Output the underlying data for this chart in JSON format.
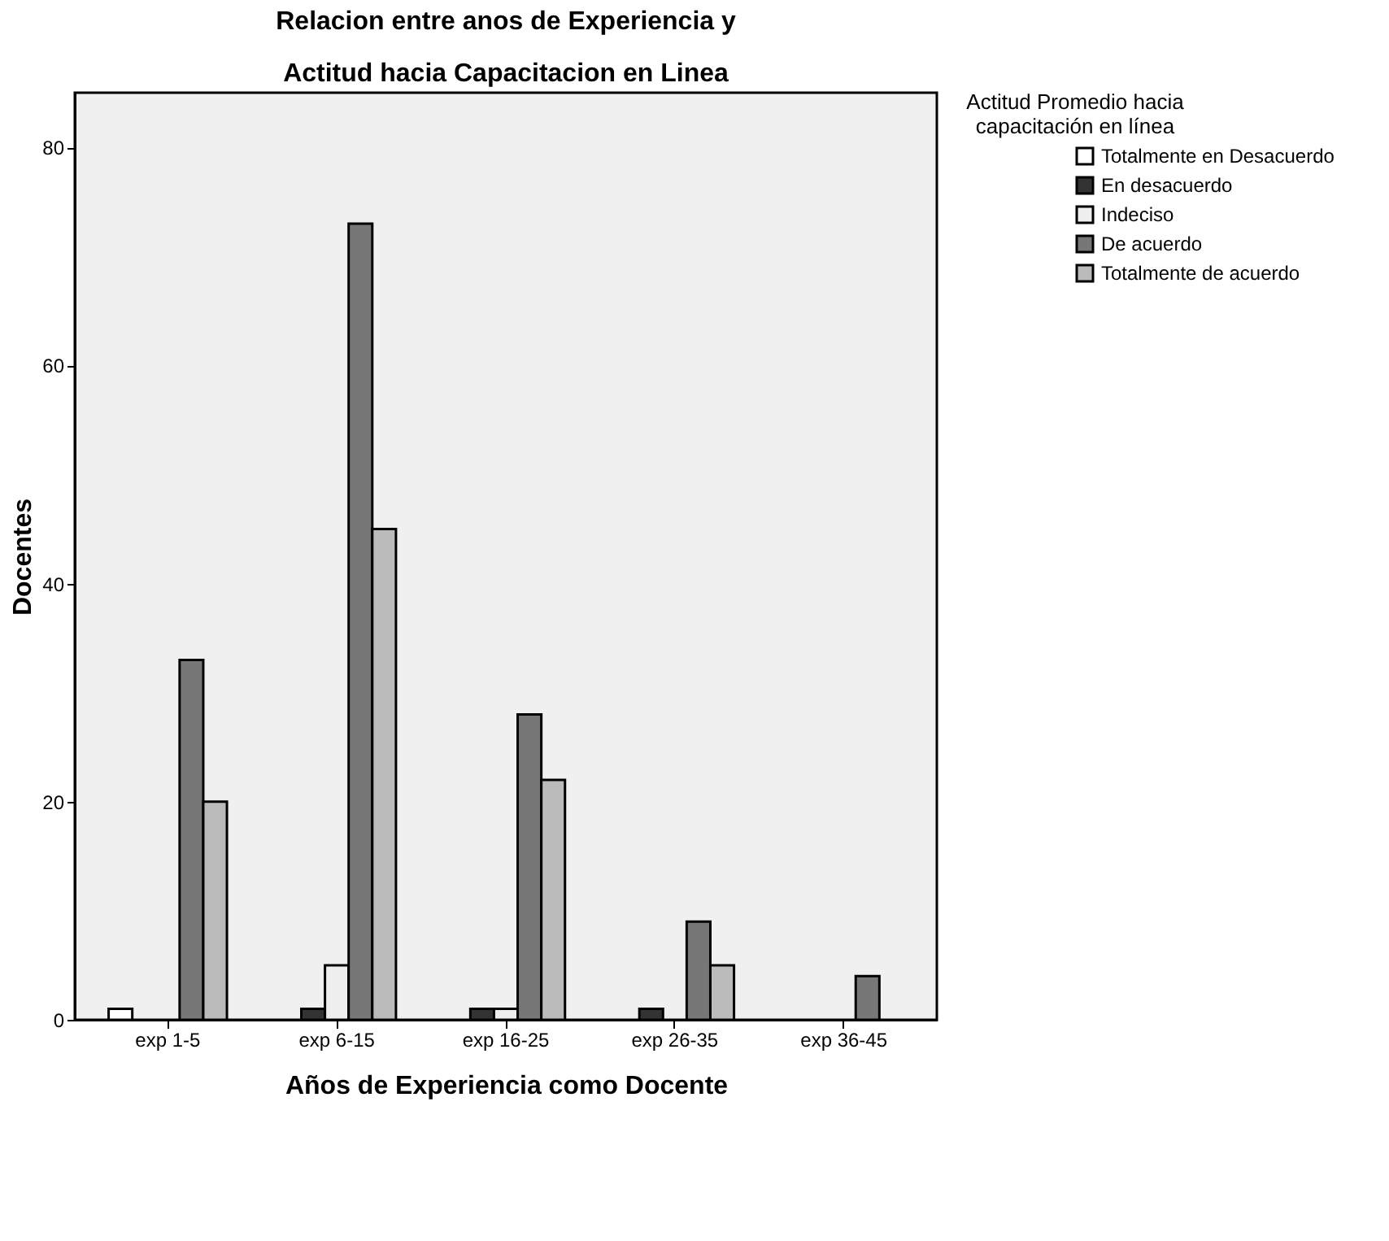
{
  "chart_data": {
    "type": "bar",
    "title": "Relacion entre anos de Experiencia y Actitud hacia Capacitacion en Linea",
    "xlabel": "Años de Experiencia como Docente",
    "ylabel": "Docentes",
    "legend_title": "Actitud Promedio hacia capacitación en línea",
    "categories": [
      "exp 1-5",
      "exp 6-15",
      "exp 16-25",
      "exp 26-35",
      "exp 36-45"
    ],
    "series": [
      {
        "name": "Totalmente en Desacuerdo",
        "color": "#ffffff",
        "values": [
          1,
          0,
          0,
          0,
          0
        ]
      },
      {
        "name": "En desacuerdo",
        "color": "#333333",
        "values": [
          0,
          1,
          1,
          1,
          0
        ]
      },
      {
        "name": "Indeciso",
        "color": "#eeeeee",
        "values": [
          0,
          5,
          1,
          0,
          0
        ]
      },
      {
        "name": "De acuerdo",
        "color": "#777777",
        "values": [
          33,
          73,
          28,
          9,
          4
        ]
      },
      {
        "name": "Totalmente de acuerdo",
        "color": "#bbbbbb",
        "values": [
          20,
          45,
          22,
          5,
          0
        ]
      }
    ],
    "ylim": [
      0,
      85
    ],
    "yticks": [
      0,
      20,
      40,
      60,
      80
    ],
    "grid": false,
    "legend": "right"
  }
}
